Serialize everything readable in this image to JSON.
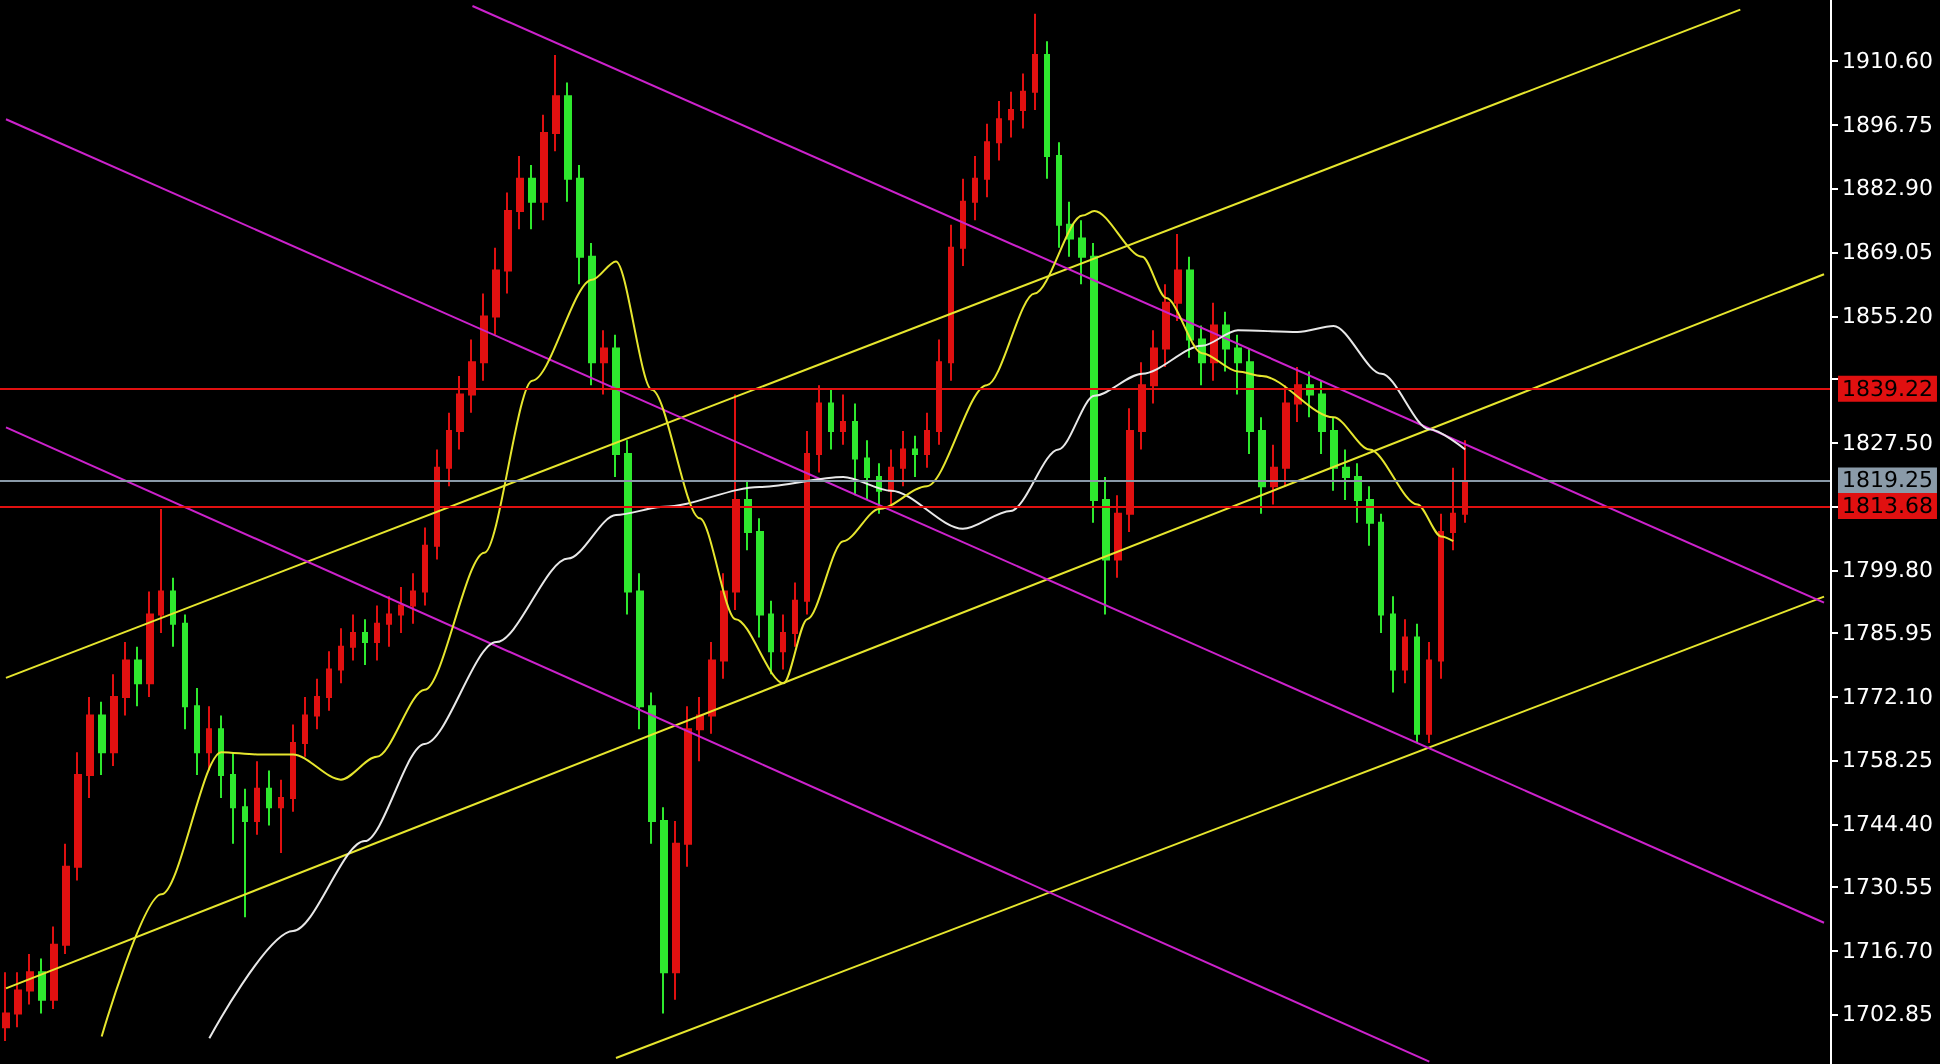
{
  "chart_data": {
    "type": "candlestick",
    "tick_labels": "y",
    "ylim": [
      1692,
      1924
    ],
    "yticks": [
      {
        "value": 1702.85,
        "label": "1702.85"
      },
      {
        "value": 1716.7,
        "label": "1716.70"
      },
      {
        "value": 1730.55,
        "label": "1730.55"
      },
      {
        "value": 1744.4,
        "label": "1744.40"
      },
      {
        "value": 1758.25,
        "label": "1758.25"
      },
      {
        "value": 1772.1,
        "label": "1772.10"
      },
      {
        "value": 1785.95,
        "label": "1785.95"
      },
      {
        "value": 1799.8,
        "label": "1799.80"
      },
      {
        "value": 1813.65,
        "label": null
      },
      {
        "value": 1827.5,
        "label": "1827.50"
      },
      {
        "value": 1841.35,
        "label": null
      },
      {
        "value": 1855.2,
        "label": "1855.20"
      },
      {
        "value": 1869.05,
        "label": "1869.05"
      },
      {
        "value": 1882.9,
        "label": "1882.90"
      },
      {
        "value": 1896.75,
        "label": "1896.75"
      },
      {
        "value": 1910.6,
        "label": "1910.60"
      }
    ],
    "categories": [
      null,
      null,
      null,
      null,
      null,
      null,
      null,
      null,
      null,
      null,
      null,
      null,
      null,
      null,
      null,
      null,
      null,
      null,
      null,
      null,
      null,
      null,
      null,
      null,
      null,
      null,
      null,
      null,
      null,
      null,
      null,
      null,
      null,
      null,
      null,
      null,
      null,
      null,
      null,
      null,
      null,
      null,
      null,
      null,
      null,
      null,
      null,
      null,
      null,
      null,
      null,
      null,
      null,
      null,
      null,
      null,
      null,
      null,
      null,
      null,
      null,
      null,
      null,
      null,
      null,
      null,
      null,
      null,
      null,
      null,
      null,
      null,
      null,
      null,
      null,
      null,
      null,
      null,
      null,
      null,
      null,
      null,
      null,
      null,
      null,
      null,
      null,
      null,
      null,
      null,
      null,
      null,
      null,
      null,
      null,
      null,
      null,
      null,
      null,
      null,
      null,
      null,
      null,
      null,
      null,
      null,
      null,
      null,
      null,
      null,
      null,
      null,
      null,
      null,
      null,
      null,
      null,
      null,
      null,
      null,
      null,
      null,
      null,
      null,
      null,
      null,
      null,
      null,
      null,
      null,
      null,
      null,
      null,
      null,
      null,
      null,
      null,
      null,
      null,
      null,
      null,
      null,
      null,
      null,
      null,
      null,
      null,
      null,
      null,
      null,
      null,
      null,
      null
    ],
    "ref_lines": [
      {
        "axis": "y",
        "value": 1839.22,
        "label": "1839.22",
        "color": "#e01010"
      },
      {
        "axis": "y",
        "value": 1819.25,
        "label": "1819.25",
        "color": "#8a9aa8"
      },
      {
        "axis": "y",
        "value": 1813.68,
        "label": "1813.68",
        "color": "#e01010"
      }
    ],
    "series": [
      {
        "type": "line",
        "color": "#e6e62e",
        "values": [
          1776.2,
          null,
          null,
          null,
          null,
          null,
          null,
          null,
          null,
          null,
          null,
          null,
          null,
          null,
          null,
          null,
          null,
          null,
          null,
          null,
          null,
          null,
          null,
          null,
          null,
          null,
          null,
          null,
          null,
          null,
          null,
          null,
          null,
          null,
          null,
          null,
          null,
          null,
          null,
          null,
          null,
          null,
          null,
          null,
          null,
          null,
          null,
          null,
          null,
          null,
          null,
          null,
          null,
          null,
          null,
          null,
          null,
          null,
          null,
          null,
          null,
          null,
          null,
          null,
          null,
          null,
          null,
          null,
          null,
          null,
          null,
          null,
          null,
          null,
          null,
          null,
          null,
          null,
          null,
          null,
          null,
          null,
          null,
          null,
          null,
          null,
          null,
          null,
          null,
          null,
          null,
          null,
          null,
          null,
          null,
          null,
          null,
          null,
          null,
          null,
          null,
          null,
          null,
          null,
          null,
          null,
          null,
          null,
          null,
          null,
          null,
          null,
          null,
          null,
          null,
          null,
          null,
          null,
          null,
          null,
          null,
          null,
          null,
          null,
          null,
          null,
          null,
          null,
          null,
          null,
          null,
          null,
          null,
          null,
          null,
          null,
          null,
          null,
          null,
          null,
          null,
          null,
          null,
          null,
          null,
          1921.9,
          null,
          null,
          null,
          null,
          null,
          null,
          null
        ]
      },
      {
        "type": "line",
        "color": "#e6e62e",
        "values": [
          1708.5,
          null,
          null,
          null,
          null,
          null,
          null,
          null,
          null,
          null,
          null,
          null,
          null,
          null,
          null,
          null,
          null,
          null,
          null,
          null,
          null,
          null,
          null,
          null,
          null,
          null,
          null,
          null,
          null,
          null,
          null,
          null,
          null,
          null,
          null,
          null,
          null,
          null,
          null,
          null,
          null,
          null,
          null,
          null,
          null,
          null,
          null,
          null,
          null,
          null,
          null,
          null,
          null,
          null,
          null,
          null,
          null,
          null,
          null,
          null,
          null,
          null,
          null,
          null,
          null,
          null,
          null,
          null,
          null,
          null,
          null,
          null,
          null,
          null,
          null,
          null,
          null,
          null,
          null,
          null,
          null,
          null,
          null,
          null,
          null,
          null,
          null,
          null,
          null,
          null,
          null,
          null,
          null,
          null,
          null,
          null,
          null,
          null,
          null,
          null,
          null,
          null,
          null,
          null,
          null,
          null,
          null,
          null,
          null,
          null,
          null,
          null,
          null,
          null,
          null,
          null,
          null,
          null,
          null,
          null,
          null,
          null,
          null,
          null,
          null,
          null,
          null,
          null,
          null,
          null,
          null,
          null,
          null,
          null,
          null,
          null,
          null,
          null,
          null,
          null,
          null,
          null,
          null,
          null,
          null,
          null,
          null,
          null,
          null,
          null,
          null,
          null,
          1864.2
        ]
      },
      {
        "type": "line",
        "color": "#e6e62e",
        "values": [
          null,
          null,
          null,
          null,
          null,
          null,
          null,
          null,
          null,
          null,
          null,
          null,
          null,
          null,
          null,
          null,
          null,
          null,
          null,
          null,
          null,
          null,
          null,
          null,
          null,
          null,
          null,
          null,
          null,
          null,
          null,
          null,
          null,
          null,
          null,
          null,
          null,
          null,
          null,
          null,
          null,
          null,
          null,
          null,
          null,
          null,
          null,
          null,
          null,
          null,
          null,
          1693.3,
          null,
          null,
          null,
          null,
          null,
          null,
          null,
          null,
          null,
          null,
          null,
          null,
          null,
          null,
          null,
          null,
          null,
          null,
          null,
          null,
          null,
          null,
          null,
          null,
          null,
          null,
          null,
          null,
          null,
          null,
          null,
          null,
          null,
          null,
          null,
          null,
          null,
          null,
          null,
          null,
          null,
          null,
          null,
          null,
          null,
          null,
          null,
          null,
          null,
          null,
          null,
          null,
          null,
          null,
          null,
          null,
          null,
          null,
          null,
          null,
          null,
          null,
          null,
          null,
          null,
          null,
          null,
          null,
          null,
          null,
          null,
          null,
          null,
          null,
          null,
          null,
          null,
          null,
          null,
          null,
          null,
          null,
          null,
          null,
          null,
          null,
          null,
          null,
          null,
          null,
          null,
          null,
          null,
          null,
          null,
          null,
          null,
          null,
          null,
          null,
          1793.9
        ]
      },
      {
        "type": "line",
        "color": "#cc22cc",
        "values": [
          null,
          null,
          null,
          null,
          null,
          null,
          null,
          null,
          null,
          null,
          null,
          null,
          null,
          null,
          null,
          null,
          null,
          null,
          null,
          null,
          null,
          null,
          null,
          null,
          null,
          null,
          null,
          null,
          null,
          null,
          null,
          null,
          null,
          null,
          null,
          null,
          null,
          null,
          null,
          1922.7,
          null,
          null,
          null,
          null,
          null,
          null,
          null,
          null,
          null,
          null,
          null,
          null,
          null,
          null,
          null,
          null,
          null,
          null,
          null,
          null,
          null,
          null,
          null,
          null,
          null,
          null,
          null,
          null,
          null,
          null,
          null,
          null,
          null,
          null,
          null,
          null,
          null,
          null,
          null,
          null,
          null,
          null,
          null,
          null,
          null,
          null,
          null,
          null,
          null,
          null,
          null,
          null,
          null,
          null,
          null,
          null,
          null,
          null,
          null,
          null,
          null,
          null,
          null,
          null,
          null,
          null,
          null,
          null,
          null,
          null,
          null,
          null,
          null,
          null,
          null,
          null,
          null,
          null,
          null,
          null,
          null,
          null,
          null,
          null,
          null,
          null,
          null,
          null,
          null,
          null,
          null,
          null,
          null,
          null,
          null,
          null,
          null,
          null,
          null,
          null,
          null,
          null,
          null,
          null,
          null,
          null,
          null,
          null,
          null,
          null,
          null,
          null,
          1792.6
        ]
      },
      {
        "type": "line",
        "color": "#cc22cc",
        "values": [
          1898.0,
          null,
          null,
          null,
          null,
          null,
          null,
          null,
          null,
          null,
          null,
          null,
          null,
          null,
          null,
          null,
          null,
          null,
          null,
          null,
          null,
          null,
          null,
          null,
          null,
          null,
          null,
          null,
          null,
          null,
          null,
          null,
          null,
          null,
          null,
          null,
          null,
          null,
          null,
          null,
          null,
          null,
          null,
          null,
          null,
          null,
          null,
          null,
          null,
          null,
          null,
          null,
          null,
          null,
          null,
          null,
          null,
          null,
          null,
          null,
          null,
          null,
          null,
          null,
          null,
          null,
          null,
          null,
          null,
          null,
          null,
          null,
          null,
          null,
          null,
          null,
          null,
          null,
          null,
          null,
          null,
          null,
          null,
          null,
          null,
          null,
          null,
          null,
          null,
          null,
          null,
          null,
          null,
          null,
          null,
          null,
          null,
          null,
          null,
          null,
          null,
          null,
          null,
          null,
          null,
          null,
          null,
          null,
          null,
          null,
          null,
          null,
          null,
          null,
          null,
          null,
          null,
          null,
          null,
          null,
          null,
          null,
          null,
          null,
          null,
          null,
          null,
          null,
          null,
          null,
          null,
          null,
          null,
          null,
          null,
          null,
          null,
          null,
          null,
          null,
          null,
          null,
          null,
          null,
          null,
          null,
          null,
          null,
          null,
          null,
          null,
          null,
          1722.8
        ]
      },
      {
        "type": "line",
        "color": "#cc22cc",
        "values": [
          1830.8,
          null,
          null,
          null,
          null,
          null,
          null,
          null,
          null,
          null,
          null,
          null,
          null,
          null,
          null,
          null,
          null,
          null,
          null,
          null,
          null,
          null,
          null,
          null,
          null,
          null,
          null,
          null,
          null,
          null,
          null,
          null,
          null,
          null,
          null,
          null,
          null,
          null,
          null,
          null,
          null,
          null,
          null,
          null,
          null,
          null,
          null,
          null,
          null,
          null,
          null,
          null,
          null,
          null,
          null,
          null,
          null,
          null,
          null,
          null,
          null,
          null,
          null,
          null,
          null,
          null,
          null,
          null,
          null,
          null,
          null,
          null,
          null,
          null,
          null,
          null,
          null,
          null,
          null,
          null,
          null,
          null,
          null,
          null,
          null,
          null,
          null,
          null,
          null,
          null,
          null,
          null,
          null,
          null,
          null,
          null,
          null,
          null,
          null,
          null,
          null,
          null,
          null,
          null,
          null,
          null,
          null,
          null,
          null,
          null,
          null,
          null,
          null,
          null,
          null,
          null,
          null,
          null,
          null,
          1692.5,
          null,
          null,
          null,
          null,
          null,
          null,
          null,
          null,
          null,
          null,
          null,
          null,
          null,
          null,
          null,
          null,
          null,
          null,
          null,
          null,
          null,
          null,
          null,
          null,
          null,
          null,
          null,
          null,
          null,
          null,
          null,
          null,
          null
        ]
      },
      {
        "type": "line",
        "color": "#e8e8e8",
        "values": [
          null,
          null,
          null,
          null,
          null,
          null,
          null,
          null,
          null,
          null,
          null,
          null,
          null,
          null,
          null,
          null,
          null,
          1697.6,
          null,
          null,
          null,
          null,
          null,
          null,
          1721,
          null,
          null,
          null,
          null,
          null,
          1740.6,
          null,
          null,
          null,
          null,
          1761.8,
          null,
          null,
          null,
          null,
          null,
          1784,
          null,
          null,
          null,
          null,
          null,
          1802.2,
          null,
          null,
          null,
          1811.7,
          null,
          null,
          null,
          1813.5,
          null,
          null,
          null,
          null,
          null,
          null,
          null,
          1817.8,
          null,
          null,
          null,
          null,
          null,
          null,
          1820,
          null,
          null,
          null,
          1817,
          null,
          null,
          null,
          null,
          null,
          1808.7,
          null,
          null,
          null,
          1812.6,
          null,
          null,
          null,
          1826,
          null,
          null,
          1837.7,
          null,
          null,
          null,
          1842.5,
          null,
          null,
          null,
          null,
          1848.6,
          null,
          null,
          1852,
          null,
          null,
          null,
          null,
          1851.6,
          null,
          null,
          1852.9,
          null,
          null,
          null,
          1842.5,
          null,
          null,
          null,
          1830.4,
          null,
          null,
          1826,
          null,
          null,
          null,
          null,
          null,
          null,
          null,
          null,
          null,
          null,
          null,
          null,
          null,
          null,
          null,
          null,
          null,
          null,
          null,
          null,
          null,
          null,
          null,
          null,
          null,
          null,
          null,
          null,
          null,
          null
        ]
      },
      {
        "type": "line",
        "color": "#e6e62e",
        "values": [
          null,
          null,
          null,
          null,
          null,
          null,
          null,
          null,
          1698,
          null,
          null,
          null,
          null,
          1729,
          null,
          null,
          null,
          null,
          1760,
          null,
          null,
          1759.5,
          null,
          null,
          1759.5,
          null,
          null,
          null,
          1754,
          null,
          null,
          1759,
          null,
          null,
          null,
          1773.6,
          null,
          null,
          null,
          null,
          1803.5,
          null,
          null,
          null,
          1841,
          null,
          null,
          null,
          null,
          1863,
          null,
          1867,
          null,
          null,
          1839,
          null,
          null,
          null,
          1811,
          null,
          null,
          1789,
          null,
          null,
          null,
          1775,
          null,
          1789,
          null,
          null,
          1806,
          null,
          null,
          1813,
          null,
          null,
          null,
          1818,
          null,
          null,
          null,
          null,
          1840,
          null,
          null,
          null,
          1860,
          null,
          null,
          null,
          1877,
          1878,
          null,
          null,
          null,
          1868,
          null,
          1859,
          null,
          null,
          1847,
          null,
          null,
          1843,
          null,
          1842,
          null,
          null,
          null,
          null,
          null,
          1833,
          null,
          null,
          1826,
          null,
          null,
          null,
          1814,
          null,
          1807,
          1806,
          null,
          null,
          null,
          null,
          null,
          null,
          null,
          null,
          null,
          null,
          null,
          null,
          null,
          null,
          null,
          null,
          null,
          null,
          null,
          null,
          null,
          null,
          null,
          null,
          null,
          null,
          null,
          null,
          null,
          null,
          null
        ]
      },
      {
        "type": "candlestick",
        "ohlc": [
          [
            1700,
            1712,
            1697,
            1703
          ],
          [
            1703,
            1712,
            1700,
            1708
          ],
          [
            1708,
            1716,
            1705,
            1712
          ],
          [
            1712,
            1715,
            1703,
            1706
          ],
          [
            1706,
            1722,
            1704,
            1718
          ],
          [
            1718,
            1740,
            1716,
            1735
          ],
          [
            1735,
            1760,
            1732,
            1755
          ],
          [
            1755,
            1772,
            1750,
            1768
          ],
          [
            1768,
            1771,
            1755,
            1760
          ],
          [
            1760,
            1777,
            1757,
            1772
          ],
          [
            1772,
            1784,
            1768,
            1780
          ],
          [
            1780,
            1783,
            1770,
            1775
          ],
          [
            1775,
            1795,
            1772,
            1790
          ],
          [
            1790,
            1813,
            1786,
            1795
          ],
          [
            1795,
            1798,
            1783,
            1788
          ],
          [
            1788,
            1790,
            1765,
            1770
          ],
          [
            1770,
            1774,
            1755,
            1760
          ],
          [
            1760,
            1770,
            1756,
            1765
          ],
          [
            1765,
            1768,
            1750,
            1755
          ],
          [
            1755,
            1760,
            1740,
            1748
          ],
          [
            1748,
            1752,
            1724,
            1745
          ],
          [
            1745,
            1758,
            1742,
            1752
          ],
          [
            1752,
            1756,
            1744,
            1748
          ],
          [
            1748,
            1754,
            1738,
            1750
          ],
          [
            1750,
            1766,
            1747,
            1762
          ],
          [
            1762,
            1772,
            1759,
            1768
          ],
          [
            1768,
            1776,
            1765,
            1772
          ],
          [
            1772,
            1782,
            1769,
            1778
          ],
          [
            1778,
            1787,
            1775,
            1783
          ],
          [
            1783,
            1790,
            1780,
            1786
          ],
          [
            1786,
            1789,
            1779,
            1784
          ],
          [
            1784,
            1792,
            1780,
            1788
          ],
          [
            1788,
            1794,
            1783,
            1790
          ],
          [
            1790,
            1796,
            1786,
            1792
          ],
          [
            1792,
            1799,
            1788,
            1795
          ],
          [
            1795,
            1809,
            1792,
            1805
          ],
          [
            1805,
            1826,
            1802,
            1822
          ],
          [
            1822,
            1834,
            1818,
            1830
          ],
          [
            1830,
            1842,
            1826,
            1838
          ],
          [
            1838,
            1850,
            1834,
            1845
          ],
          [
            1845,
            1860,
            1841,
            1855
          ],
          [
            1855,
            1870,
            1851,
            1865
          ],
          [
            1865,
            1882,
            1860,
            1878
          ],
          [
            1878,
            1890,
            1874,
            1885
          ],
          [
            1885,
            1888,
            1874,
            1880
          ],
          [
            1880,
            1899,
            1876,
            1895
          ],
          [
            1895,
            1912,
            1891,
            1903
          ],
          [
            1903,
            1906,
            1880,
            1885
          ],
          [
            1885,
            1888,
            1862,
            1868
          ],
          [
            1868,
            1871,
            1840,
            1845
          ],
          [
            1845,
            1852,
            1838,
            1848
          ],
          [
            1848,
            1851,
            1820,
            1825
          ],
          [
            1825,
            1828,
            1790,
            1795
          ],
          [
            1795,
            1799,
            1765,
            1770
          ],
          [
            1770,
            1773,
            1740,
            1745
          ],
          [
            1745,
            1748,
            1703,
            1712
          ],
          [
            1712,
            1745,
            1706,
            1740
          ],
          [
            1740,
            1770,
            1735,
            1765
          ],
          [
            1765,
            1772,
            1758,
            1768
          ],
          [
            1768,
            1784,
            1764,
            1780
          ],
          [
            1780,
            1799,
            1776,
            1795
          ],
          [
            1795,
            1838,
            1791,
            1815
          ],
          [
            1815,
            1819,
            1804,
            1808
          ],
          [
            1808,
            1811,
            1785,
            1790
          ],
          [
            1790,
            1793,
            1777,
            1782
          ],
          [
            1782,
            1790,
            1778,
            1786
          ],
          [
            1786,
            1797,
            1783,
            1793
          ],
          [
            1793,
            1830,
            1790,
            1825
          ],
          [
            1825,
            1840,
            1821,
            1836
          ],
          [
            1836,
            1839,
            1826,
            1830
          ],
          [
            1830,
            1838,
            1827,
            1832
          ],
          [
            1832,
            1836,
            1816,
            1824
          ],
          [
            1824,
            1828,
            1815,
            1820
          ],
          [
            1820,
            1823,
            1812,
            1817
          ],
          [
            1817,
            1826,
            1814,
            1822
          ],
          [
            1822,
            1830,
            1818,
            1826
          ],
          [
            1826,
            1829,
            1820,
            1825
          ],
          [
            1825,
            1834,
            1822,
            1830
          ],
          [
            1830,
            1850,
            1827,
            1845
          ],
          [
            1845,
            1875,
            1841,
            1870
          ],
          [
            1870,
            1885,
            1866,
            1880
          ],
          [
            1880,
            1890,
            1876,
            1885
          ],
          [
            1885,
            1897,
            1881,
            1893
          ],
          [
            1893,
            1902,
            1889,
            1898
          ],
          [
            1898,
            1904,
            1894,
            1900
          ],
          [
            1900,
            1908,
            1896,
            1904
          ],
          [
            1904,
            1921,
            1900,
            1912
          ],
          [
            1912,
            1915,
            1885,
            1890
          ],
          [
            1890,
            1893,
            1870,
            1875
          ],
          [
            1875,
            1880,
            1868,
            1872
          ],
          [
            1872,
            1876,
            1862,
            1868
          ],
          [
            1868,
            1871,
            1810,
            1815
          ],
          [
            1815,
            1820,
            1790,
            1802
          ],
          [
            1802,
            1816,
            1798,
            1812
          ],
          [
            1812,
            1835,
            1808,
            1830
          ],
          [
            1830,
            1845,
            1826,
            1840
          ],
          [
            1840,
            1852,
            1836,
            1848
          ],
          [
            1848,
            1862,
            1844,
            1858
          ],
          [
            1858,
            1873,
            1854,
            1865
          ],
          [
            1865,
            1868,
            1846,
            1850
          ],
          [
            1850,
            1853,
            1840,
            1845
          ],
          [
            1845,
            1858,
            1841,
            1853
          ],
          [
            1853,
            1856,
            1843,
            1848
          ],
          [
            1848,
            1851,
            1838,
            1845
          ],
          [
            1845,
            1848,
            1825,
            1830
          ],
          [
            1830,
            1833,
            1812,
            1818
          ],
          [
            1818,
            1827,
            1814,
            1822
          ],
          [
            1822,
            1840,
            1818,
            1836
          ],
          [
            1836,
            1844,
            1832,
            1840
          ],
          [
            1840,
            1843,
            1833,
            1838
          ],
          [
            1838,
            1841,
            1825,
            1830
          ],
          [
            1830,
            1833,
            1817,
            1822
          ],
          [
            1822,
            1826,
            1815,
            1820
          ],
          [
            1820,
            1823,
            1810,
            1815
          ],
          [
            1815,
            1818,
            1805,
            1810
          ],
          [
            1810,
            1812,
            1786,
            1790
          ],
          [
            1790,
            1794,
            1773,
            1778
          ],
          [
            1778,
            1789,
            1775,
            1785
          ],
          [
            1785,
            1788,
            1762,
            1764
          ],
          [
            1764,
            1784,
            1762,
            1780
          ],
          [
            1780,
            1812,
            1776,
            1808
          ],
          [
            1808,
            1822,
            1804,
            1812
          ],
          [
            1812,
            1828,
            1810,
            1819
          ],
          null,
          null,
          null,
          null,
          null,
          null,
          null,
          null,
          null,
          null,
          null,
          null,
          null,
          null,
          null,
          null,
          null,
          null,
          null,
          null,
          null,
          null,
          null,
          null,
          null,
          null,
          null,
          null,
          null,
          null
        ],
        "colors": [
          "#e01010",
          "#e01010",
          "#e01010",
          "#2ee82e",
          "#e01010",
          "#e01010",
          "#e01010",
          "#e01010",
          "#2ee82e",
          "#e01010",
          "#e01010",
          "#2ee82e",
          "#e01010",
          "#e01010",
          "#2ee82e",
          "#2ee82e",
          "#2ee82e",
          "#e01010",
          "#2ee82e",
          "#2ee82e",
          "#2ee82e",
          "#e01010",
          "#2ee82e",
          "#e01010",
          "#e01010",
          "#e01010",
          "#e01010",
          "#e01010",
          "#e01010",
          "#e01010",
          "#2ee82e",
          "#e01010",
          "#e01010",
          "#e01010",
          "#e01010",
          "#e01010",
          "#e01010",
          "#e01010",
          "#e01010",
          "#e01010",
          "#e01010",
          "#e01010",
          "#e01010",
          "#e01010",
          "#2ee82e",
          "#e01010",
          "#e01010",
          "#2ee82e",
          "#2ee82e",
          "#2ee82e",
          "#e01010",
          "#2ee82e",
          "#2ee82e",
          "#2ee82e",
          "#2ee82e",
          "#2ee82e",
          "#e01010",
          "#e01010",
          "#e01010",
          "#e01010",
          "#e01010",
          "#e01010",
          "#2ee82e",
          "#2ee82e",
          "#2ee82e",
          "#e01010",
          "#e01010",
          "#e01010",
          "#e01010",
          "#2ee82e",
          "#e01010",
          "#2ee82e",
          "#2ee82e",
          "#2ee82e",
          "#e01010",
          "#e01010",
          "#2ee82e",
          "#e01010",
          "#e01010",
          "#e01010",
          "#e01010",
          "#e01010",
          "#e01010",
          "#e01010",
          "#e01010",
          "#e01010",
          "#e01010",
          "#2ee82e",
          "#2ee82e",
          "#2ee82e",
          "#2ee82e",
          "#2ee82e",
          "#2ee82e",
          "#e01010",
          "#e01010",
          "#e01010",
          "#e01010",
          "#e01010",
          "#e01010",
          "#2ee82e",
          "#2ee82e",
          "#e01010",
          "#2ee82e",
          "#2ee82e",
          "#2ee82e",
          "#2ee82e",
          "#e01010",
          "#e01010",
          "#e01010",
          "#2ee82e",
          "#2ee82e",
          "#2ee82e",
          "#2ee82e",
          "#2ee82e",
          "#2ee82e",
          "#2ee82e",
          "#2ee82e",
          "#e01010",
          "#2ee82e",
          "#e01010",
          "#e01010",
          "#e01010",
          "#e01010",
          null,
          null,
          null,
          null,
          null,
          null,
          null,
          null,
          null,
          null,
          null,
          null,
          null,
          null,
          null,
          null,
          null,
          null,
          null,
          null,
          null,
          null,
          null,
          null,
          null,
          null,
          null,
          null,
          null,
          null
        ]
      }
    ]
  }
}
